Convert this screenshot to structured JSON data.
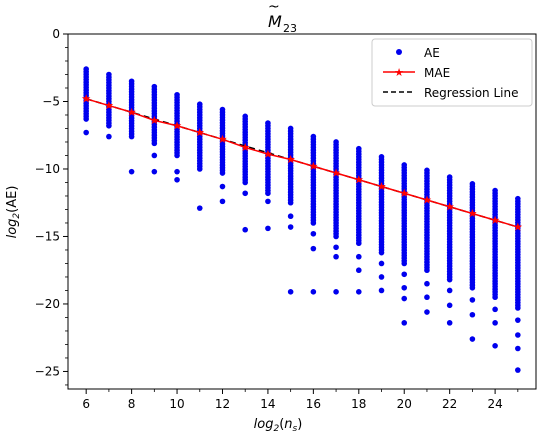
{
  "chart_data": {
    "type": "scatter",
    "title_base": "M",
    "title_tilde": "~",
    "title_sub": "23",
    "xlabel_base": "log",
    "xlabel_sub": "2",
    "xlabel_arg_open": "(",
    "xlabel_arg_var": "n",
    "xlabel_arg_sub": "s",
    "xlabel_arg_close": ")",
    "ylabel_base": "log",
    "ylabel_sub": "2",
    "ylabel_arg": "(AE)",
    "xlim": [
      5.2,
      25.8
    ],
    "ylim": [
      -26.3,
      0
    ],
    "xticks": [
      6,
      8,
      10,
      12,
      14,
      16,
      18,
      20,
      22,
      24
    ],
    "xtick_labels": [
      "6",
      "8",
      "10",
      "12",
      "14",
      "16",
      "18",
      "20",
      "22",
      "24"
    ],
    "yticks": [
      0,
      -5,
      -10,
      -15,
      -20,
      -25
    ],
    "ytick_labels": [
      "0",
      "−5",
      "−10",
      "−15",
      "−20",
      "−25"
    ],
    "legend_position": "top-right",
    "grid": false,
    "colors": {
      "ae": "#0000ee",
      "mae_line": "#ff0000",
      "mae_marker": "#ff0000",
      "regression": "#000000"
    },
    "series": [
      {
        "name": "AE",
        "kind": "scatter",
        "columns": [
          {
            "x": 6,
            "top": -2.6,
            "bottom": -6.3,
            "outliers": [
              -7.3
            ]
          },
          {
            "x": 7,
            "top": -3.0,
            "bottom": -6.8,
            "outliers": [
              -7.6
            ]
          },
          {
            "x": 8,
            "top": -3.5,
            "bottom": -7.6,
            "outliers": [
              -10.2
            ]
          },
          {
            "x": 9,
            "top": -3.9,
            "bottom": -8.1,
            "outliers": [
              -9.0,
              -10.2
            ]
          },
          {
            "x": 10,
            "top": -4.5,
            "bottom": -9.0,
            "outliers": [
              -10.2,
              -10.8
            ]
          },
          {
            "x": 11,
            "top": -5.2,
            "bottom": -10.0,
            "outliers": [
              -12.9
            ]
          },
          {
            "x": 12,
            "top": -5.6,
            "bottom": -10.3,
            "outliers": [
              -11.3,
              -12.4
            ]
          },
          {
            "x": 13,
            "top": -6.1,
            "bottom": -11.0,
            "outliers": [
              -11.8,
              -14.5
            ]
          },
          {
            "x": 14,
            "top": -6.6,
            "bottom": -11.8,
            "outliers": [
              -12.4,
              -14.4
            ]
          },
          {
            "x": 15,
            "top": -7.0,
            "bottom": -12.5,
            "outliers": [
              -13.5,
              -14.3,
              -19.1
            ]
          },
          {
            "x": 16,
            "top": -7.6,
            "bottom": -14.0,
            "outliers": [
              -14.8,
              -15.9,
              -19.1
            ]
          },
          {
            "x": 17,
            "top": -8.0,
            "bottom": -15.0,
            "outliers": [
              -15.8,
              -16.5,
              -19.1
            ]
          },
          {
            "x": 18,
            "top": -8.5,
            "bottom": -15.5,
            "outliers": [
              -16.5,
              -17.5,
              -19.1
            ]
          },
          {
            "x": 19,
            "top": -9.1,
            "bottom": -16.2,
            "outliers": [
              -17.0,
              -18.0,
              -19.0
            ]
          },
          {
            "x": 20,
            "top": -9.7,
            "bottom": -17.0,
            "outliers": [
              -17.8,
              -18.8,
              -19.6,
              -21.4
            ]
          },
          {
            "x": 21,
            "top": -10.1,
            "bottom": -17.5,
            "outliers": [
              -18.5,
              -19.5,
              -20.6
            ]
          },
          {
            "x": 22,
            "top": -10.6,
            "bottom": -18.2,
            "outliers": [
              -19.0,
              -20.1,
              -21.4
            ]
          },
          {
            "x": 23,
            "top": -11.1,
            "bottom": -18.8,
            "outliers": [
              -19.7,
              -20.8,
              -22.6
            ]
          },
          {
            "x": 24,
            "top": -11.6,
            "bottom": -19.5,
            "outliers": [
              -20.4,
              -21.4,
              -23.1
            ]
          },
          {
            "x": 25,
            "top": -12.2,
            "bottom": -20.3,
            "outliers": [
              -21.2,
              -22.3,
              -23.3,
              -24.9
            ]
          }
        ]
      },
      {
        "name": "MAE",
        "kind": "line-marker",
        "x": [
          6,
          7,
          8,
          9,
          10,
          11,
          12,
          13,
          14,
          15,
          16,
          17,
          18,
          19,
          20,
          21,
          22,
          23,
          24,
          25
        ],
        "y": [
          -4.8,
          -5.3,
          -5.8,
          -6.4,
          -6.8,
          -7.3,
          -7.8,
          -8.4,
          -8.9,
          -9.3,
          -9.8,
          -10.3,
          -10.8,
          -11.3,
          -11.8,
          -12.3,
          -12.8,
          -13.3,
          -13.8,
          -14.3
        ]
      },
      {
        "name": "Regression Line",
        "kind": "dashed-line",
        "x": [
          6,
          25
        ],
        "y": [
          -4.8,
          -14.3
        ]
      }
    ]
  }
}
